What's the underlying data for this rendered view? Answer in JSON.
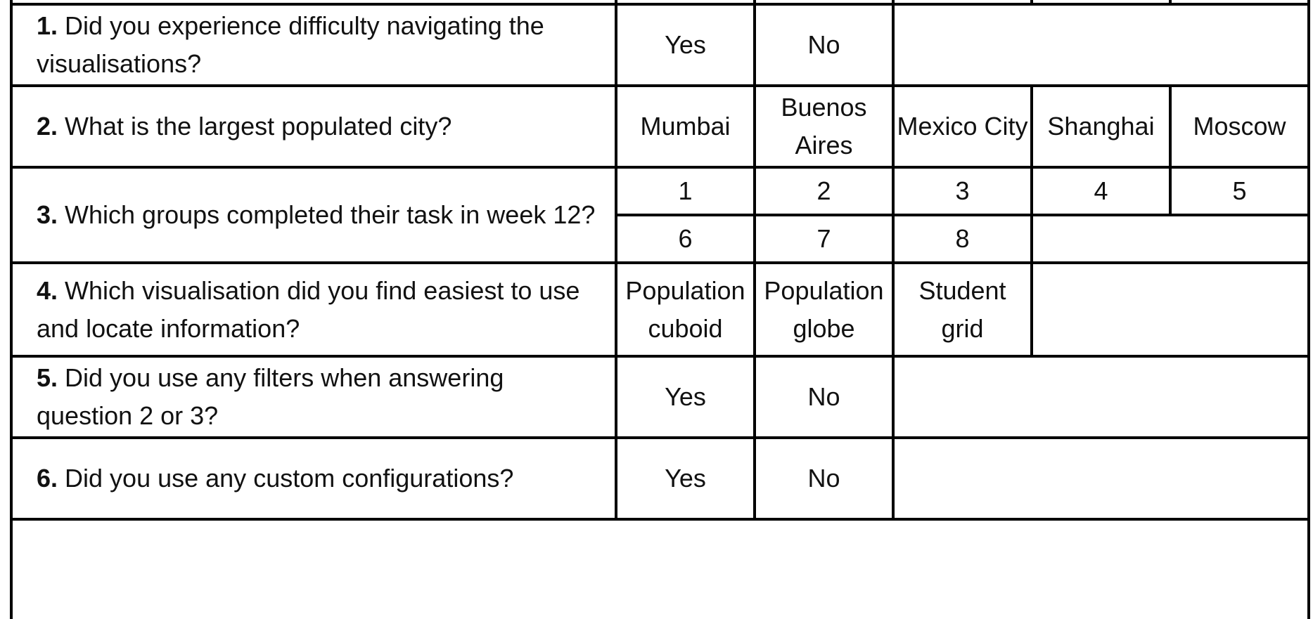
{
  "questions": [
    {
      "number": "1.",
      "text": " Did you experience difficulty navigating the visualisations?",
      "options": [
        "Yes",
        "No"
      ]
    },
    {
      "number": "2.",
      "text": " What is the largest populated city?",
      "options": [
        "Mumbai",
        "Buenos Aires",
        "Mexico City",
        "Shanghai",
        "Moscow"
      ]
    },
    {
      "number": "3.",
      "text": " Which groups completed their task in week 12?",
      "options": [
        "1",
        "2",
        "3",
        "4",
        "5",
        "6",
        "7",
        "8"
      ]
    },
    {
      "number": "4.",
      "text": " Which visualisation did you find easiest to use and locate information?",
      "options": [
        "Population cuboid",
        "Population globe",
        "Student grid"
      ]
    },
    {
      "number": "5.",
      "text": " Did you use any filters when answering question 2 or 3?",
      "options": [
        "Yes",
        "No"
      ]
    },
    {
      "number": "6.",
      "text": " Did you use any custom configurations?",
      "options": [
        "Yes",
        "No"
      ]
    }
  ]
}
